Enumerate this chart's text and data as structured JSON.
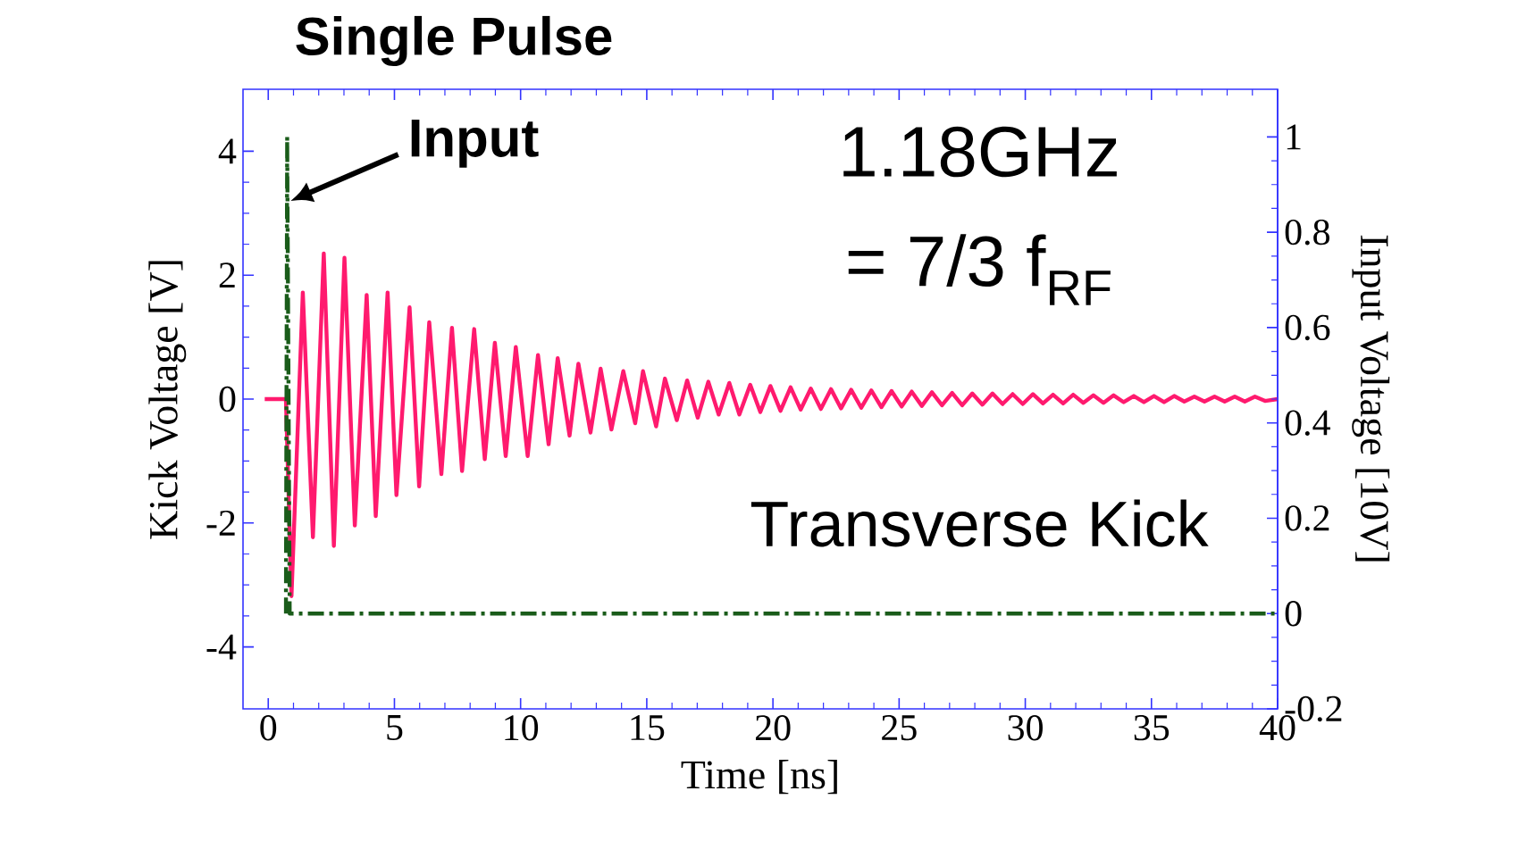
{
  "chart_data": {
    "type": "line",
    "title": "Single Pulse",
    "xlabel": "Time [ns]",
    "ylabel": "Kick Voltage [V]",
    "y2label": "Input Voltage [10V]",
    "xlim": [
      -1,
      40
    ],
    "xticks": [
      0,
      5,
      10,
      15,
      20,
      25,
      30,
      35,
      40
    ],
    "ylim": [
      -5,
      5
    ],
    "yticks": [
      -4,
      -2,
      0,
      2,
      4
    ],
    "y2lim": [
      -0.2,
      1.1
    ],
    "y2ticks": [
      -0.2,
      0,
      0.2,
      0.4,
      0.6,
      0.8,
      1
    ],
    "series": [
      {
        "color": "#ff1a6e",
        "line_style": "solid",
        "x": [
          -0.14,
          0.7,
          0.92,
          1.37,
          1.77,
          2.2,
          2.6,
          3.02,
          3.43,
          3.9,
          4.26,
          4.73,
          5.08,
          5.6,
          5.98,
          6.38,
          6.86,
          7.28,
          7.68,
          8.16,
          8.58,
          8.98,
          9.41,
          9.81,
          10.28,
          10.69,
          11.11,
          11.47,
          11.94,
          12.29,
          12.77,
          13.17,
          13.6,
          14.07,
          14.54,
          14.85,
          15.37,
          15.72,
          16.19,
          16.6,
          17.02,
          17.44,
          17.85,
          18.27,
          18.67,
          19.1,
          19.5,
          19.9,
          20.3,
          20.7,
          21.1,
          21.5,
          21.9,
          22.3,
          22.7,
          23.1,
          23.5,
          23.9,
          24.3,
          24.7,
          25.1,
          25.5,
          25.9,
          26.3,
          26.7,
          27.1,
          27.5,
          27.9,
          28.3,
          28.7,
          29.1,
          29.5,
          29.9,
          30.3,
          30.7,
          31.1,
          31.5,
          31.9,
          32.3,
          32.7,
          33.1,
          33.5,
          33.9,
          34.3,
          34.7,
          35.1,
          35.5,
          35.9,
          36.3,
          36.7,
          37.1,
          37.5,
          37.9,
          38.3,
          38.7,
          39.1,
          39.5,
          40
        ],
        "values": [
          0,
          0,
          -3.18,
          1.72,
          -2.23,
          2.35,
          -2.37,
          2.28,
          -2.04,
          1.68,
          -1.89,
          1.72,
          -1.55,
          1.48,
          -1.41,
          1.24,
          -1.21,
          1.15,
          -1.16,
          1.13,
          -0.97,
          0.91,
          -0.92,
          0.84,
          -0.92,
          0.71,
          -0.73,
          0.66,
          -0.59,
          0.57,
          -0.54,
          0.49,
          -0.49,
          0.45,
          -0.39,
          0.45,
          -0.44,
          0.33,
          -0.34,
          0.3,
          -0.3,
          0.28,
          -0.25,
          0.26,
          -0.25,
          0.23,
          -0.21,
          0.21,
          -0.19,
          0.19,
          -0.17,
          0.17,
          -0.16,
          0.16,
          -0.15,
          0.15,
          -0.14,
          0.14,
          -0.13,
          0.13,
          -0.12,
          0.12,
          -0.11,
          0.11,
          -0.1,
          0.1,
          -0.1,
          0.09,
          -0.09,
          0.09,
          -0.08,
          0.08,
          -0.08,
          0.08,
          -0.07,
          0.07,
          -0.07,
          0.07,
          -0.06,
          0.06,
          -0.06,
          0.06,
          -0.05,
          0.05,
          -0.05,
          0.05,
          -0.05,
          0.05,
          -0.04,
          0.04,
          -0.04,
          0.04,
          -0.04,
          0.04,
          -0.04,
          0.04,
          -0.03,
          0
        ]
      },
      {
        "color": "#1a5c1a",
        "line_style": "dashdot",
        "axis": "y2",
        "x": [
          0.7,
          0.75,
          0.85,
          40
        ],
        "values": [
          0,
          1.0,
          0,
          0
        ]
      }
    ],
    "annotations": [
      {
        "text": "Input",
        "x": 0.9,
        "y": 3.2
      },
      "1.18GHz",
      "= 7/3 f$_{RF}$",
      "Transverse Kick"
    ]
  }
}
